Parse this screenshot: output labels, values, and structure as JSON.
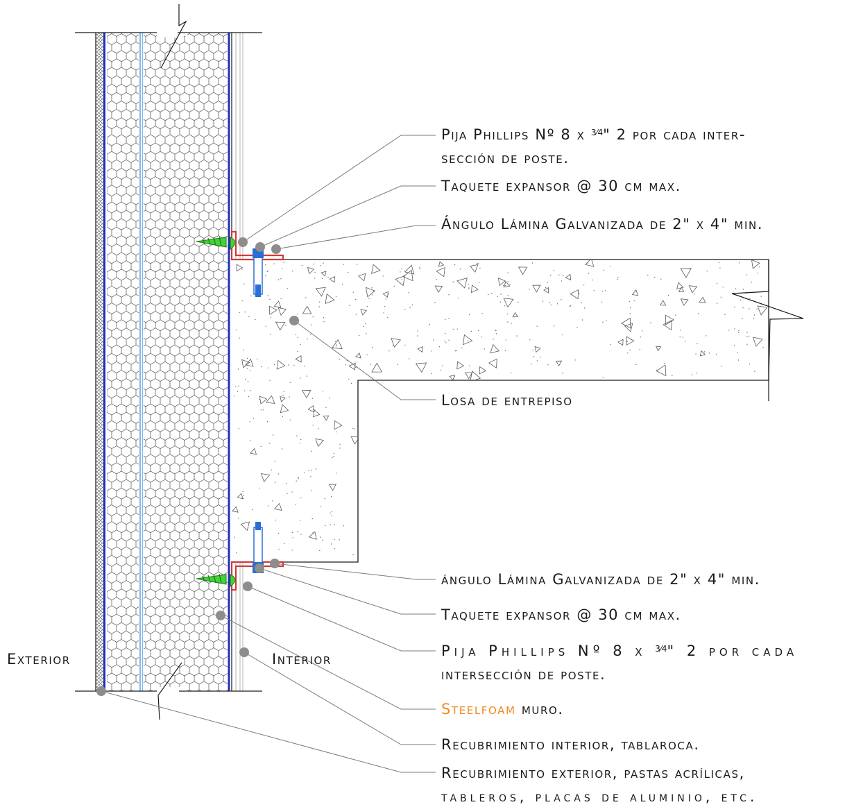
{
  "labels": {
    "top_pija_1": "Pija Phillips Nº 8 x ",
    "top_pija_frac": "3⁄4",
    "top_pija_2": "\" 2 por cada inter-",
    "top_pija_line2": "sección de poste.",
    "top_taquete": "Taquete expansor @ 30 cm max.",
    "top_angulo": "Ángulo Lámina Galvanizada de 2\" x 4\" min.",
    "losa": "Losa de entrepiso",
    "bot_angulo": "ángulo Lámina Galvanizada de 2\" x 4\" min.",
    "bot_taquete": "Taquete expansor @ 30 cm max.",
    "bot_pija_1": "Pija Phillips Nº 8 x ",
    "bot_pija_frac": "3⁄4",
    "bot_pija_2": "\" 2 por cada",
    "bot_pija_line2": "intersección de poste.",
    "steelfoam_brand": "Steelfoam",
    "steelfoam_rest": " muro.",
    "recub_interior": "Recubrimiento interior, tablaroca.",
    "recub_exterior_1": "Recubrimiento exterior, pastas acrílicas,",
    "recub_exterior_2": "tableros, placas de aluminio, etc.",
    "exterior": "Exterior",
    "interior": "Interior"
  },
  "colors": {
    "line": "#1a1a1a",
    "leader": "#7a7a7a",
    "panel_dark_blue": "#1f2fb8",
    "panel_light_blue": "#7fb8e8",
    "angle_red": "#d43a3a",
    "screw_green": "#44d23a",
    "anchor_blue": "#2a6fd6",
    "accent_orange": "#f08a24"
  }
}
